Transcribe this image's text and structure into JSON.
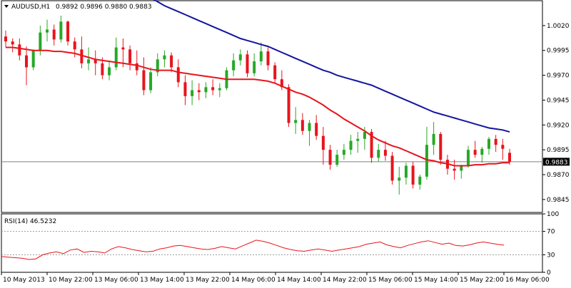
{
  "header": {
    "symbol": "AUDUSD,H1",
    "ohlc": "0.9892 0.9896 0.9880 0.9883",
    "menu_icon": "triangle-down-icon"
  },
  "rsi_label": "RSI(14) 46.5232",
  "current_price": "0.9883",
  "colors": {
    "bull": "#27a827",
    "bear": "#e8141c",
    "ma_fast": "#e8141c",
    "ma_slow": "#1414a0",
    "rsi": "#e8141c",
    "frame": "#000000",
    "price_line": "#808080"
  },
  "chart_data": [
    {
      "type": "candlestick",
      "title": "AUDUSD,H1",
      "ylim": [
        0.9832,
        1.0045
      ],
      "y_ticks": [
        "1.0020",
        "0.9995",
        "0.9970",
        "0.9945",
        "0.9920",
        "0.9895",
        "0.9870",
        "0.9845"
      ],
      "current_price": 0.9883,
      "candles": [
        [
          1.0009,
          1.0015,
          0.9998,
          1.0004
        ],
        [
          1.0004,
          1.0007,
          0.9993,
          1.0001
        ],
        [
          1.0001,
          1.0007,
          0.9985,
          0.999
        ],
        [
          0.999,
          0.9999,
          0.996,
          0.9978
        ],
        [
          0.9978,
          0.9996,
          0.9975,
          0.9995
        ],
        [
          0.9995,
          1.002,
          0.999,
          1.0013
        ],
        [
          1.0013,
          1.0026,
          1.0004,
          1.0016
        ],
        [
          1.0016,
          1.0021,
          1.0,
          1.0006
        ],
        [
          1.0006,
          1.003,
          1.0003,
          1.0024
        ],
        [
          1.0024,
          1.0025,
          1.0,
          1.0004
        ],
        [
          1.0004,
          1.0008,
          0.9988,
          0.9996
        ],
        [
          0.9996,
          1.0009,
          0.9977,
          0.9982
        ],
        [
          0.9982,
          0.9998,
          0.9975,
          0.9986
        ],
        [
          0.9986,
          0.9995,
          0.997,
          0.9982
        ],
        [
          0.9982,
          0.9988,
          0.9966,
          0.997
        ],
        [
          0.997,
          0.9985,
          0.9965,
          0.9978
        ],
        [
          0.9978,
          1.0008,
          0.9975,
          0.9998
        ],
        [
          0.9998,
          1.0007,
          0.9978,
          0.9996
        ],
        [
          0.9996,
          1.0,
          0.9975,
          0.9982
        ],
        [
          0.9982,
          0.9995,
          0.997,
          0.9975
        ],
        [
          0.9975,
          0.9988,
          0.995,
          0.9955
        ],
        [
          0.9955,
          0.9978,
          0.9952,
          0.9973
        ],
        [
          0.9973,
          0.9992,
          0.9969,
          0.9986
        ],
        [
          0.9986,
          0.9995,
          0.9978,
          0.999
        ],
        [
          0.999,
          0.9993,
          0.9973,
          0.9978
        ],
        [
          0.9978,
          0.9986,
          0.9958,
          0.9963
        ],
        [
          0.9963,
          0.997,
          0.994,
          0.9949
        ],
        [
          0.9949,
          0.9965,
          0.994,
          0.9955
        ],
        [
          0.9955,
          0.9962,
          0.9945,
          0.9953
        ],
        [
          0.9953,
          0.9963,
          0.9947,
          0.9958
        ],
        [
          0.9958,
          0.9966,
          0.995,
          0.9955
        ],
        [
          0.9955,
          0.9962,
          0.9948,
          0.9957
        ],
        [
          0.9957,
          0.9978,
          0.9955,
          0.9975
        ],
        [
          0.9975,
          0.9992,
          0.9969,
          0.9985
        ],
        [
          0.9985,
          0.9996,
          0.998,
          0.9991
        ],
        [
          0.9991,
          0.9995,
          0.9968,
          0.9972
        ],
        [
          0.9972,
          0.9992,
          0.9969,
          0.9984
        ],
        [
          0.9984,
          1.0003,
          0.998,
          0.9994
        ],
        [
          0.9994,
          0.9998,
          0.9975,
          0.998
        ],
        [
          0.998,
          0.9983,
          0.9962,
          0.9966
        ],
        [
          0.9966,
          0.9975,
          0.9955,
          0.9958
        ],
        [
          0.9958,
          0.9961,
          0.9918,
          0.9922
        ],
        [
          0.9922,
          0.9938,
          0.9911,
          0.9925
        ],
        [
          0.9925,
          0.9932,
          0.991,
          0.9914
        ],
        [
          0.9914,
          0.9925,
          0.9899,
          0.9922
        ],
        [
          0.9922,
          0.993,
          0.9905,
          0.9909
        ],
        [
          0.9909,
          0.9918,
          0.988,
          0.9895
        ],
        [
          0.9895,
          0.99,
          0.9875,
          0.988
        ],
        [
          0.988,
          0.9895,
          0.9878,
          0.989
        ],
        [
          0.989,
          0.9901,
          0.9885,
          0.9895
        ],
        [
          0.9895,
          0.991,
          0.989,
          0.9904
        ],
        [
          0.9904,
          0.9913,
          0.9892,
          0.9906
        ],
        [
          0.9906,
          0.9918,
          0.9895,
          0.9913
        ],
        [
          0.9913,
          0.9916,
          0.9882,
          0.9887
        ],
        [
          0.9887,
          0.9901,
          0.9883,
          0.9895
        ],
        [
          0.9895,
          0.9904,
          0.9884,
          0.9889
        ],
        [
          0.9889,
          0.9893,
          0.986,
          0.9864
        ],
        [
          0.9864,
          0.9878,
          0.985,
          0.9867
        ],
        [
          0.9867,
          0.9882,
          0.986,
          0.9879
        ],
        [
          0.9879,
          0.9883,
          0.9856,
          0.986
        ],
        [
          0.986,
          0.987,
          0.9855,
          0.9868
        ],
        [
          0.9868,
          0.9918,
          0.9865,
          0.99
        ],
        [
          0.99,
          0.9923,
          0.989,
          0.9911
        ],
        [
          0.9911,
          0.9913,
          0.988,
          0.9885
        ],
        [
          0.9885,
          0.989,
          0.987,
          0.9876
        ],
        [
          0.9876,
          0.9885,
          0.9865,
          0.9874
        ],
        [
          0.9874,
          0.988,
          0.9866,
          0.9879
        ],
        [
          0.9879,
          0.9899,
          0.9877,
          0.9895
        ],
        [
          0.9895,
          0.9904,
          0.9887,
          0.989
        ],
        [
          0.989,
          0.9898,
          0.9882,
          0.9896
        ],
        [
          0.9896,
          0.9908,
          0.989,
          0.9906
        ],
        [
          0.9906,
          0.991,
          0.9893,
          0.99
        ],
        [
          0.99,
          0.9906,
          0.9885,
          0.9896
        ],
        [
          0.9892,
          0.9896,
          0.988,
          0.9883
        ]
      ],
      "ma_fast": [
        0.9998,
        0.9998,
        0.9997,
        0.9996,
        0.9995,
        0.9995,
        0.9995,
        0.9994,
        0.9994,
        0.9993,
        0.9992,
        0.999,
        0.9988,
        0.9986,
        0.9985,
        0.9984,
        0.9983,
        0.9982,
        0.9981,
        0.998,
        0.9978,
        0.9976,
        0.9975,
        0.9975,
        0.9975,
        0.9973,
        0.9972,
        0.9971,
        0.997,
        0.9969,
        0.9968,
        0.9967,
        0.9966,
        0.9966,
        0.9966,
        0.9966,
        0.9966,
        0.9965,
        0.9964,
        0.9962,
        0.9959,
        0.9956,
        0.9953,
        0.9951,
        0.9948,
        0.9944,
        0.994,
        0.9935,
        0.9931,
        0.9926,
        0.9922,
        0.9918,
        0.9914,
        0.9909,
        0.9905,
        0.9902,
        0.9899,
        0.9897,
        0.9894,
        0.9891,
        0.9888,
        0.9885,
        0.9884,
        0.9882,
        0.9881,
        0.9879,
        0.9879,
        0.9879,
        0.988,
        0.988,
        0.9881,
        0.9881,
        0.9882,
        0.9882
      ],
      "ma_slow": [
        null,
        null,
        null,
        null,
        null,
        null,
        null,
        null,
        null,
        null,
        null,
        null,
        null,
        null,
        null,
        null,
        null,
        null,
        1.006,
        1.0056,
        1.0052,
        1.0048,
        1.0044,
        1.004,
        1.0037,
        1.0034,
        1.0031,
        1.0028,
        1.0025,
        1.0022,
        1.0019,
        1.0016,
        1.0013,
        1.001,
        1.0007,
        1.0005,
        1.0003,
        1.0001,
        0.9999,
        0.9996,
        0.9993,
        0.999,
        0.9987,
        0.9984,
        0.9981,
        0.9978,
        0.9975,
        0.9973,
        0.997,
        0.9968,
        0.9966,
        0.9964,
        0.9962,
        0.996,
        0.9957,
        0.9954,
        0.9951,
        0.9948,
        0.9945,
        0.9942,
        0.9939,
        0.9936,
        0.9933,
        0.9931,
        0.9929,
        0.9927,
        0.9925,
        0.9923,
        0.9921,
        0.9919,
        0.9917,
        0.9916,
        0.9915,
        0.9913
      ]
    },
    {
      "type": "line",
      "title": "RSI(14) 46.5232",
      "ylim": [
        0,
        100
      ],
      "y_ticks": [
        "100",
        "70",
        "30",
        "0"
      ],
      "levels": [
        70,
        30
      ],
      "x_labels": [
        "10 May 2013",
        "10 May 22:00",
        "13 May 06:00",
        "13 May 14:00",
        "13 May 22:00",
        "14 May 06:00",
        "14 May 14:00",
        "14 May 22:00",
        "15 May 06:00",
        "15 May 14:00",
        "15 May 22:00",
        "16 May 06:00"
      ],
      "values": [
        27,
        26,
        25,
        24,
        22,
        23,
        30,
        33,
        35,
        32,
        38,
        40,
        34,
        36,
        35,
        33,
        40,
        44,
        42,
        39,
        37,
        35,
        36,
        40,
        42,
        45,
        46,
        44,
        42,
        40,
        39,
        41,
        44,
        42,
        40,
        45,
        50,
        55,
        53,
        50,
        46,
        42,
        39,
        37,
        36,
        38,
        40,
        38,
        36,
        38,
        40,
        42,
        44,
        48,
        50,
        52,
        47,
        44,
        42,
        46,
        49,
        52,
        54,
        51,
        48,
        50,
        46,
        45,
        47,
        50,
        52,
        50,
        48,
        46.5
      ]
    }
  ]
}
